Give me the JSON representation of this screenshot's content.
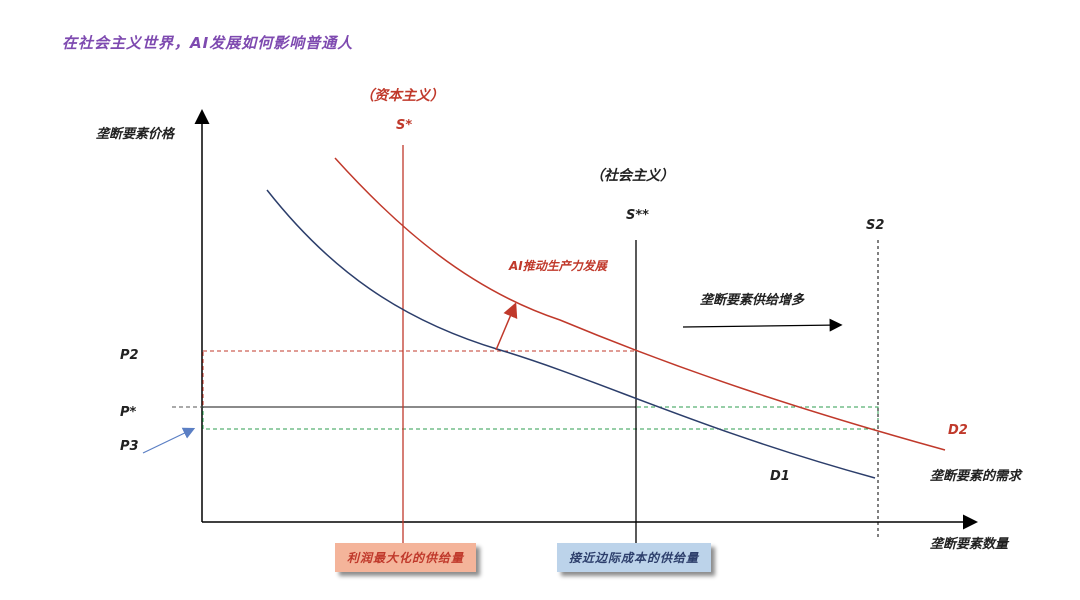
{
  "title": "在社会主义世界，AI发展如何影响普通人",
  "labels": {
    "y_axis": "垄断要素价格",
    "x_axis": "垄断要素数量",
    "demand_axis": "垄断要素的需求",
    "capitalism": "（资本主义）",
    "socialism": "（社会主义）",
    "s_star": "S*",
    "s_star2": "S**",
    "s2": "S2",
    "ai_growth": "AI推动生产力发展",
    "supply_up": "垄断要素供给增多",
    "p2": "P2",
    "p_star": "P*",
    "p3": "P3",
    "d1": "D1",
    "d2": "D2"
  },
  "boxes": {
    "profit_max": "利润最大化的供给量",
    "marginal_cost": "接近边际成本的供给量"
  },
  "colors": {
    "red": "#c0392b",
    "navy": "#2c3e6b",
    "green": "#2e9e4f",
    "title": "#7e4ab0"
  }
}
